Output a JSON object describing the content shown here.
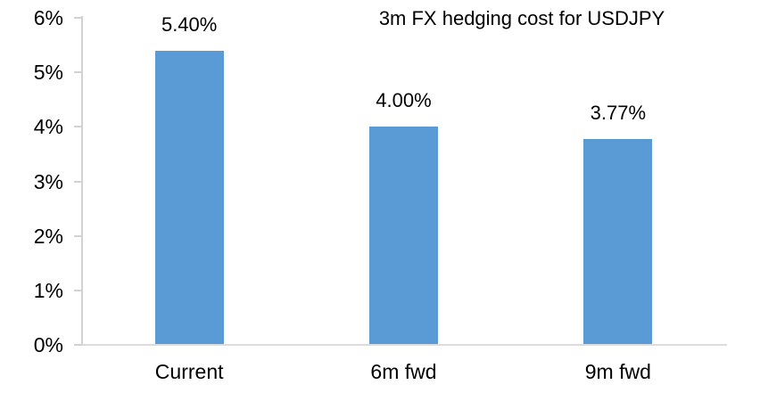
{
  "chart_data": {
    "type": "bar",
    "title": "3m FX hedging cost for USDJPY",
    "categories": [
      "Current",
      "6m fwd",
      "9m fwd"
    ],
    "values": [
      5.4,
      4.0,
      3.77
    ],
    "value_labels": [
      "5.40%",
      "4.00%",
      "3.77%"
    ],
    "y_ticks": [
      "6%",
      "5%",
      "4%",
      "3%",
      "2%",
      "1%",
      "0%"
    ],
    "ylim": [
      0,
      6
    ],
    "y_tick_step": 1,
    "xlabel": "",
    "ylabel": "",
    "legend": "none",
    "grid": false,
    "bar_color": "#5B9BD5",
    "y_axis_color": "#D2D2D2",
    "x_axis_color": "#DCDCDC",
    "text_color": "#000000",
    "background_color": "#FFFFFF"
  }
}
